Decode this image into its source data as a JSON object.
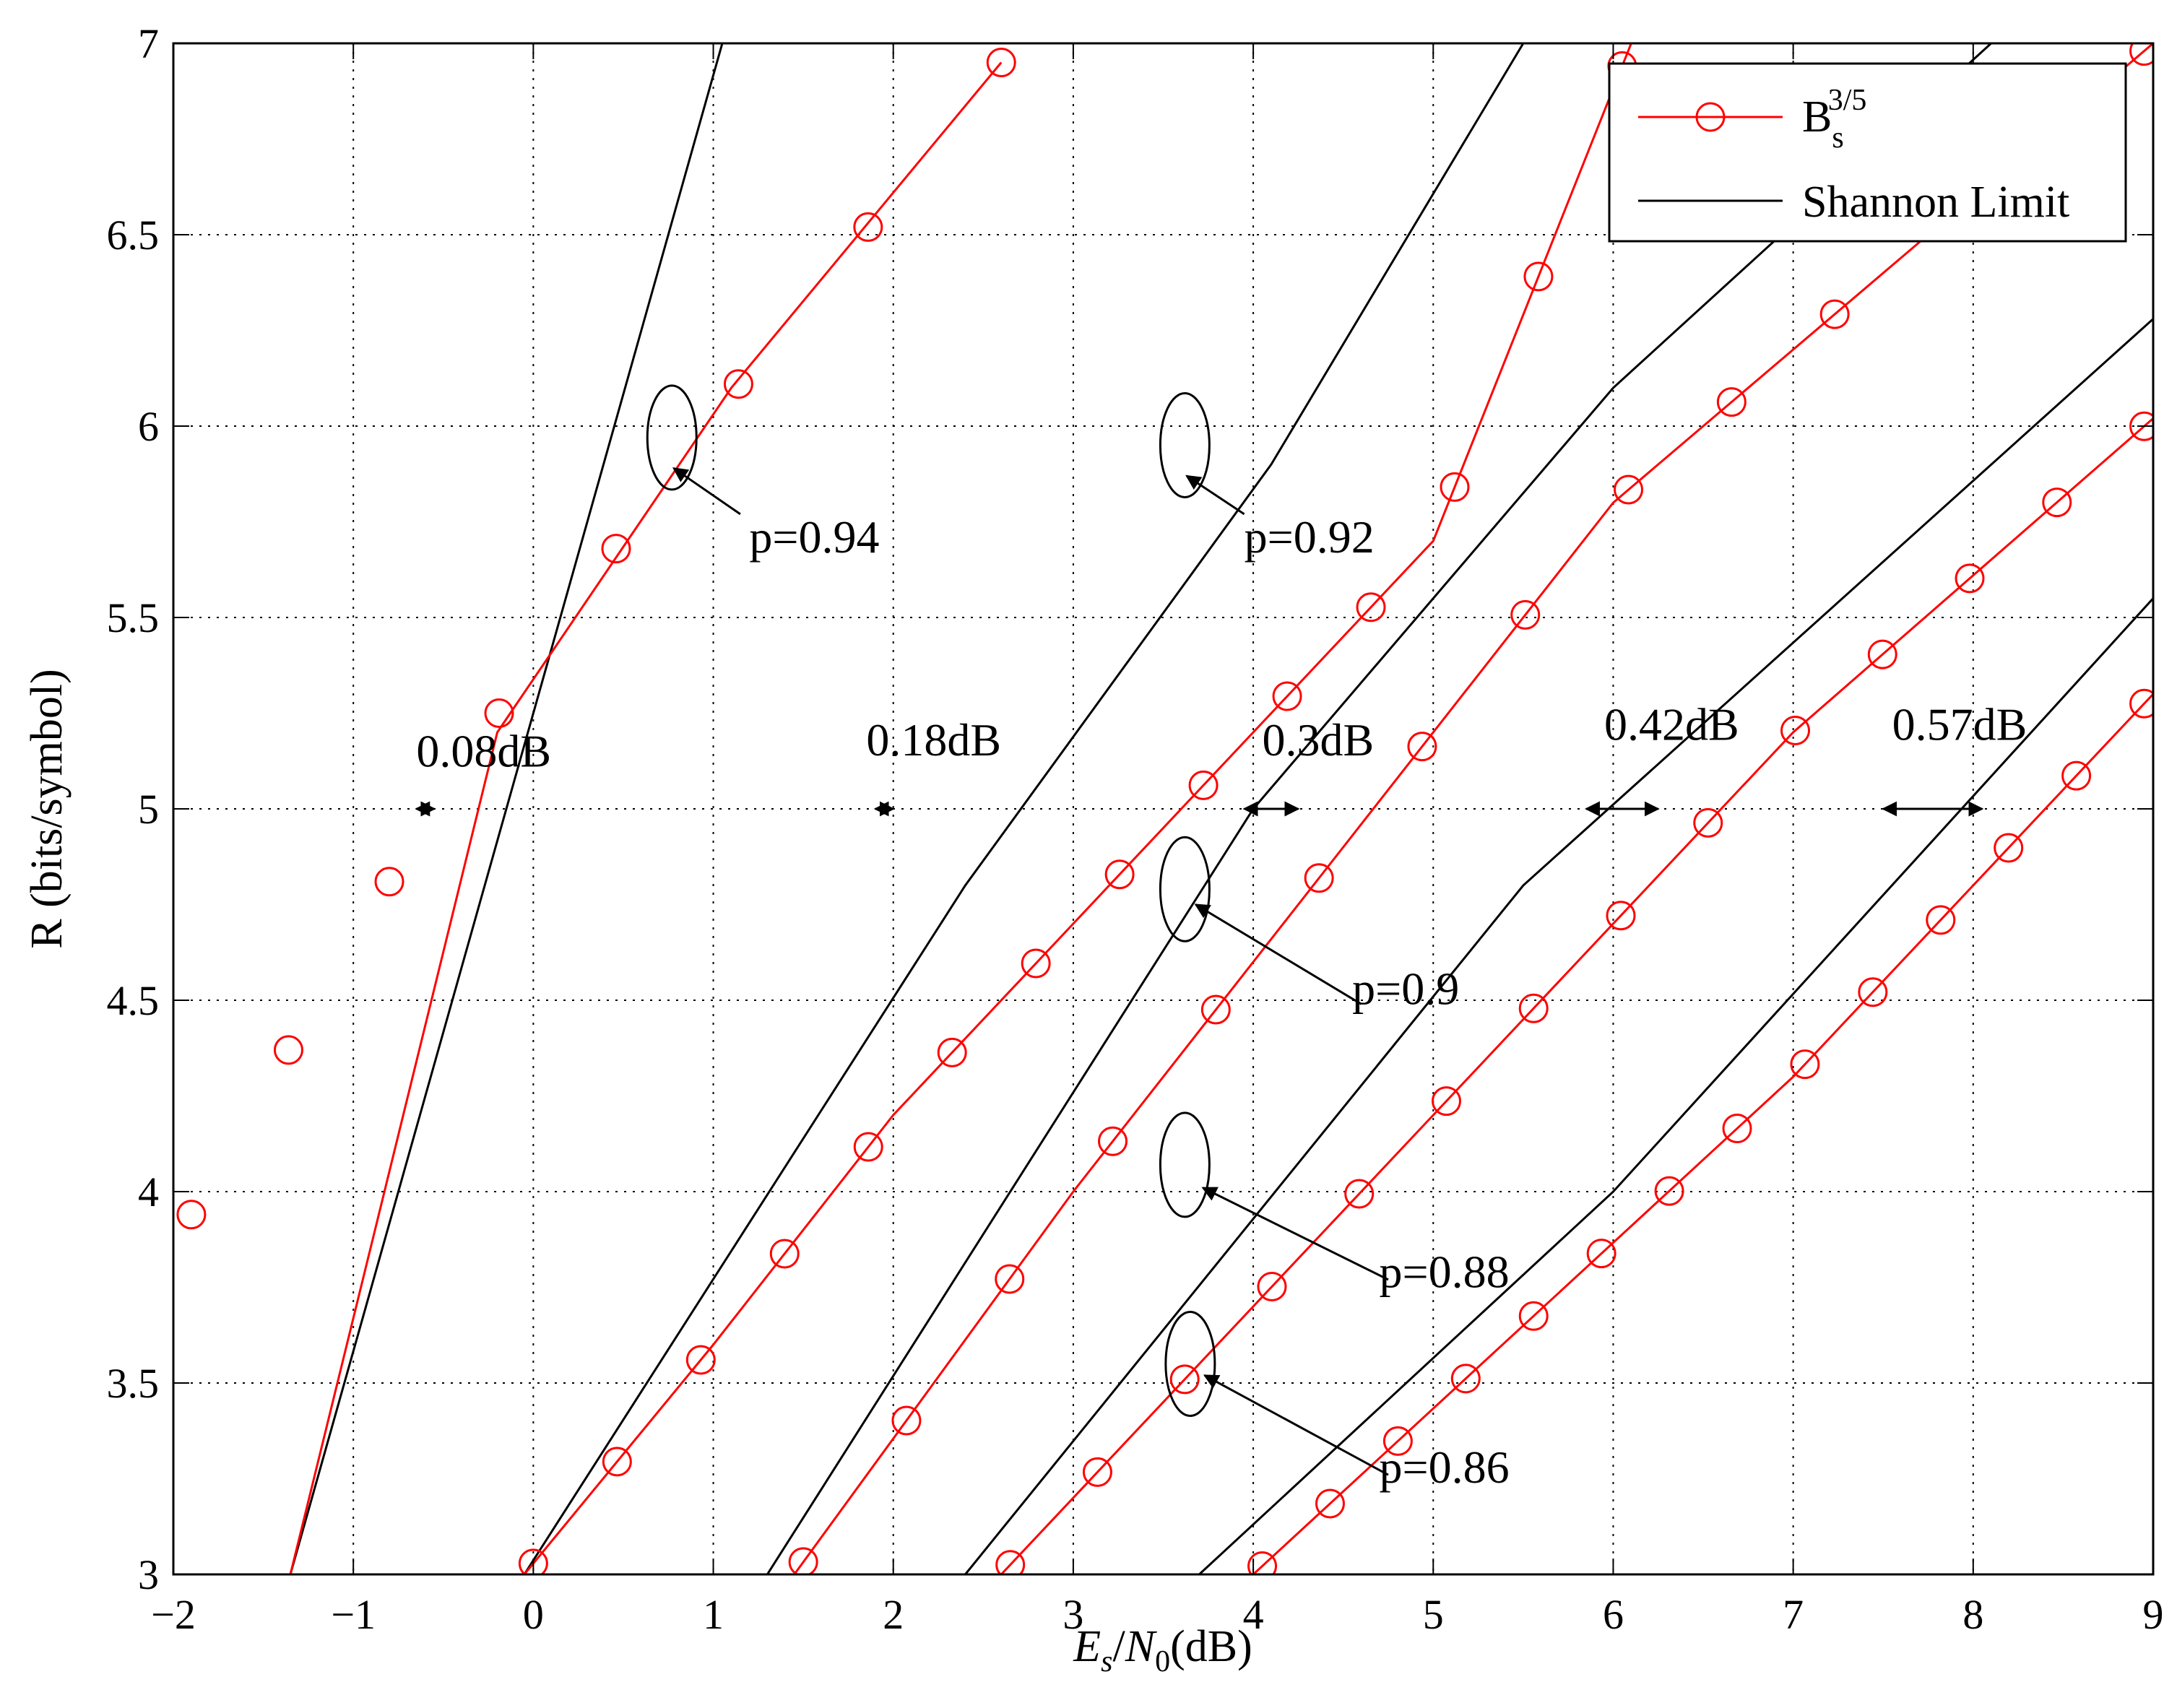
{
  "chart_data": {
    "type": "line",
    "xlabel": "E_s/N_0(dB)",
    "ylabel": "R (bits/symbol)",
    "xlim": [
      -2,
      9
    ],
    "ylim": [
      3,
      7
    ],
    "xticks": [
      -2,
      -1,
      0,
      1,
      2,
      3,
      4,
      5,
      6,
      7,
      8,
      9
    ],
    "yticks": [
      3,
      3.5,
      4,
      4.5,
      5,
      5.5,
      6,
      6.5,
      7
    ],
    "xtick_labels": [
      "−2",
      "−1",
      "0",
      "1",
      "2",
      "3",
      "4",
      "5",
      "6",
      "7",
      "8",
      "9"
    ],
    "ytick_labels": [
      "3",
      "3.5",
      "4",
      "4.5",
      "5",
      "5.5",
      "6",
      "6.5",
      "7"
    ],
    "grid": true,
    "legend_position": "top-right",
    "legend": [
      {
        "key": "bs",
        "base": "B",
        "sub": "s",
        "sup": "3/5",
        "color": "#ff0000",
        "marker": "circle"
      },
      {
        "key": "shannon",
        "label": "Shannon Limit",
        "color": "#000000",
        "marker": "none"
      }
    ],
    "series": [
      {
        "family": "p=0.94",
        "kind": "shannon",
        "x": [
          -1.35,
          1.05
        ],
        "y": [
          3,
          7
        ]
      },
      {
        "family": "p=0.94",
        "kind": "bs",
        "x": [
          -1.35,
          -0.2,
          1.1,
          2.6
        ],
        "y": [
          3,
          5.2,
          6.1,
          6.95
        ],
        "markers": [
          [
            -1.9,
            3.94
          ],
          [
            -1.36,
            4.37
          ],
          [
            -0.8,
            4.81
          ],
          [
            -0.19,
            5.25
          ],
          [
            0.46,
            5.68
          ],
          [
            1.14,
            6.11
          ],
          [
            1.86,
            6.52
          ],
          [
            2.6,
            6.95
          ]
        ]
      },
      {
        "family": "p=0.92",
        "kind": "shannon",
        "x": [
          -0.05,
          2.4,
          4.1,
          5.5
        ],
        "y": [
          3,
          4.8,
          5.9,
          7
        ]
      },
      {
        "family": "p=0.92",
        "kind": "bs",
        "x": [
          -0.05,
          1.0,
          2.0,
          3.0,
          4.0,
          5.0,
          6.1
        ],
        "y": [
          3,
          3.6,
          4.2,
          4.7,
          5.2,
          5.7,
          7
        ]
      },
      {
        "family": "p=0.9",
        "kind": "shannon",
        "x": [
          1.3,
          4.0,
          6.0,
          8.1
        ],
        "y": [
          3,
          5,
          6.1,
          7
        ]
      },
      {
        "family": "p=0.9",
        "kind": "bs",
        "x": [
          1.45,
          3.0,
          4.5,
          6.0,
          9.0
        ],
        "y": [
          3,
          4.0,
          4.9,
          5.8,
          7
        ]
      },
      {
        "family": "p=0.88",
        "kind": "shannon",
        "x": [
          2.4,
          5.5,
          9.0
        ],
        "y": [
          3,
          4.8,
          6.28
        ]
      },
      {
        "family": "p=0.88",
        "kind": "bs",
        "x": [
          2.6,
          5.0,
          7.0,
          9.0
        ],
        "y": [
          3,
          4.2,
          5.2,
          6.02
        ]
      },
      {
        "family": "p=0.86",
        "kind": "shannon",
        "x": [
          3.7,
          6.0,
          9.0
        ],
        "y": [
          3,
          4.0,
          5.55
        ]
      },
      {
        "family": "p=0.86",
        "kind": "bs",
        "x": [
          4.0,
          7.0,
          9.0
        ],
        "y": [
          3,
          4.3,
          5.3
        ]
      }
    ],
    "annotations": [
      {
        "text": "p=0.94",
        "x": 1.2,
        "y": 5.67
      },
      {
        "text": "p=0.92",
        "x": 3.95,
        "y": 5.67
      },
      {
        "text": "p=0.9",
        "x": 4.55,
        "y": 4.49
      },
      {
        "text": "p=0.88",
        "x": 4.7,
        "y": 3.75
      },
      {
        "text": "p=0.86",
        "x": 4.7,
        "y": 3.24
      },
      {
        "text": "0.08dB",
        "x": -0.65,
        "y": 5.11
      },
      {
        "text": "0.18dB",
        "x": 1.85,
        "y": 5.14
      },
      {
        "text": "0.3dB",
        "x": 4.05,
        "y": 5.14
      },
      {
        "text": "0.42dB",
        "x": 5.95,
        "y": 5.18
      },
      {
        "text": "0.57dB",
        "x": 7.55,
        "y": 5.18
      }
    ],
    "gap_markers": [
      {
        "x1": -0.65,
        "x2": -0.55,
        "y": 5
      },
      {
        "x1": 1.9,
        "x2": 2.0,
        "y": 5
      },
      {
        "x1": 3.95,
        "x2": 4.25,
        "y": 5
      },
      {
        "x1": 5.85,
        "x2": 6.25,
        "y": 5
      },
      {
        "x1": 7.5,
        "x2": 8.05,
        "y": 5
      }
    ]
  }
}
